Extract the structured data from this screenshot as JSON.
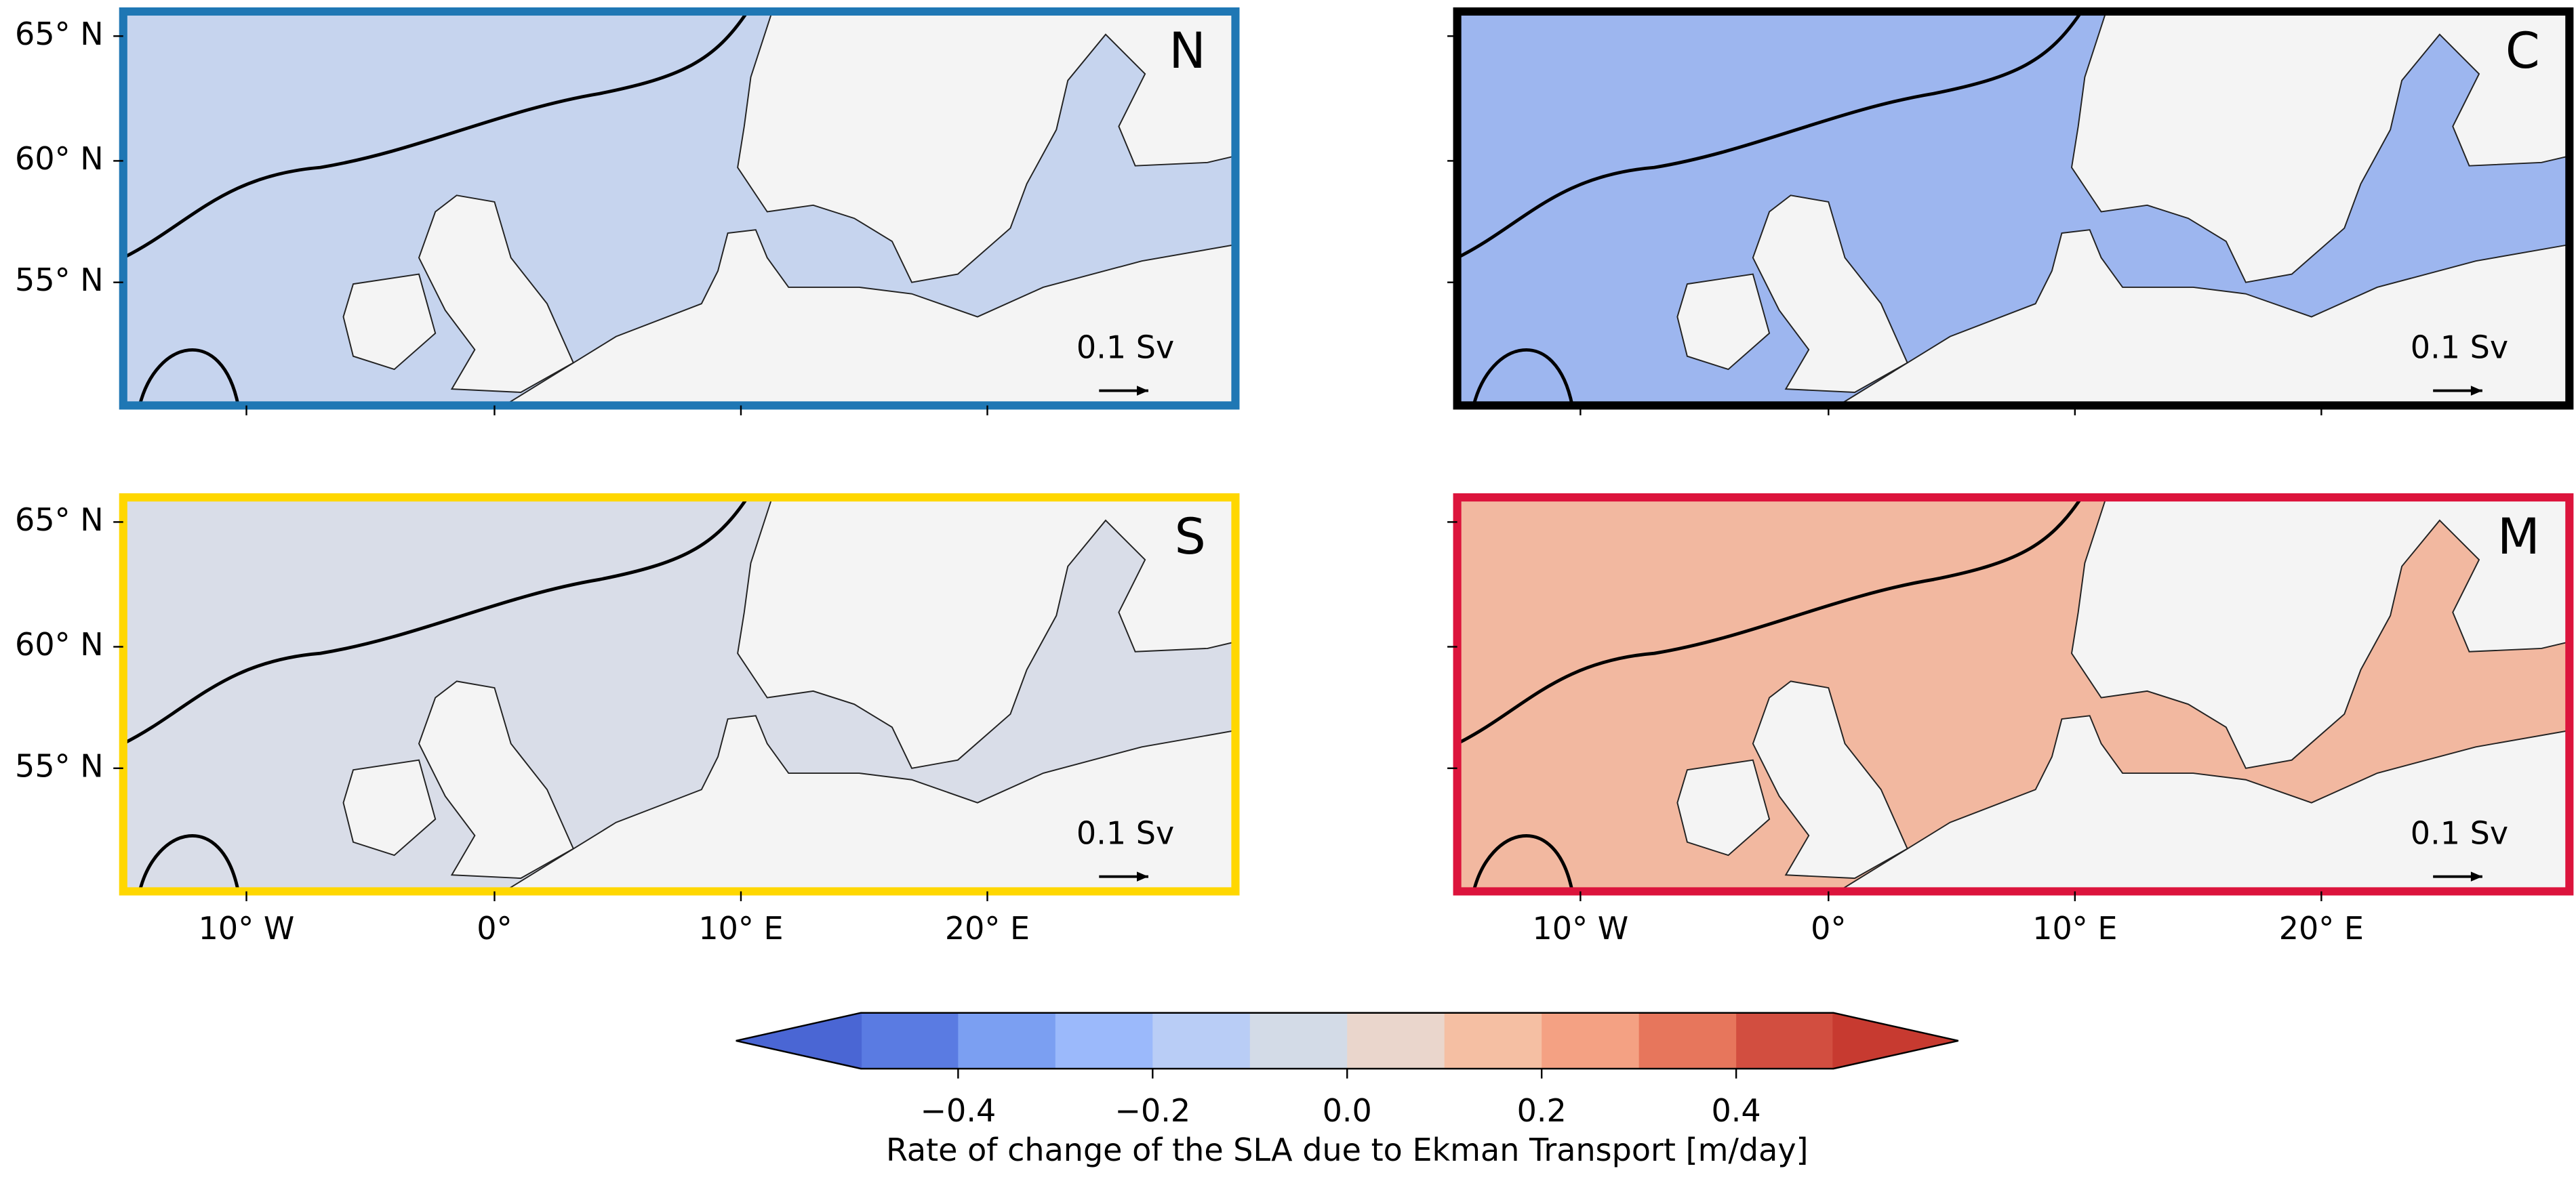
{
  "panels": [
    {
      "label": "N",
      "border_color": "#1f77b4",
      "scale_label": "0.1 Sv"
    },
    {
      "label": "C",
      "border_color": "#000000",
      "scale_label": "0.1 Sv"
    },
    {
      "label": "S",
      "border_color": "#ffd700",
      "scale_label": "0.1 Sv"
    },
    {
      "label": "M",
      "border_color": "#dc143c",
      "scale_label": "0.1 Sv"
    }
  ],
  "lat_tick_labels": [
    "65° N",
    "60° N",
    "55° N"
  ],
  "lon_tick_labels": [
    "10° W",
    "0°",
    "10° E",
    "20° E"
  ],
  "colorbar": {
    "label": "Rate of change of the SLA due to Ekman Transport [m/day]",
    "lim": [
      -0.5,
      0.5
    ],
    "ticks": [
      {
        "value": -0.4,
        "label": "−0.4"
      },
      {
        "value": -0.2,
        "label": "−0.2"
      },
      {
        "value": 0,
        "label": "0.0"
      },
      0.2,
      0.4
    ],
    "colors": [
      "#5a7be2",
      "#7b9ff2",
      "#9bb9fb",
      "#b9cdf6",
      "#d3dbe7",
      "#ead6cc",
      "#f5bfa3",
      "#f4a183",
      "#e7765c",
      "#d24e40"
    ],
    "under_color": "#4a66d4",
    "over_color": "#c73a30"
  }
}
